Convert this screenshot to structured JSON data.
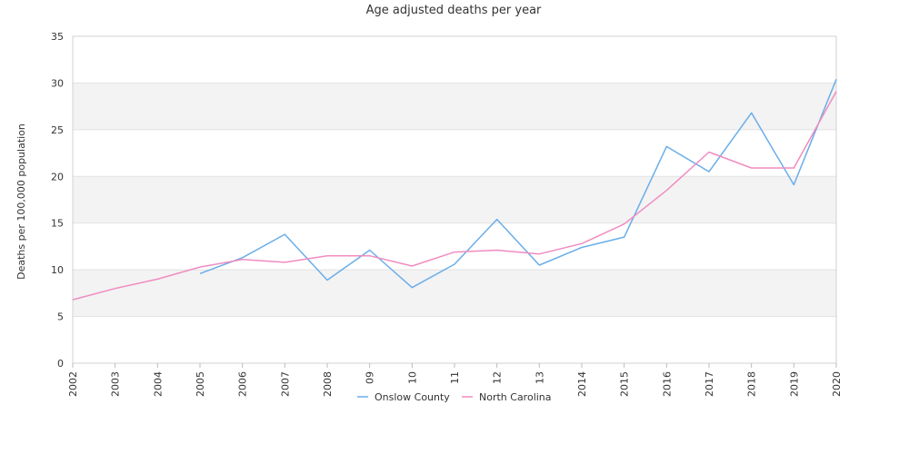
{
  "chart_data": {
    "type": "line",
    "title": "Age adjusted deaths per year",
    "ylabel": "Deaths per 100,000 population",
    "xlabel": "",
    "ylim": [
      0,
      35
    ],
    "yticks": [
      0,
      5,
      10,
      15,
      20,
      25,
      30,
      35
    ],
    "grid": "alternating horizontal bands",
    "legend_position": "bottom",
    "categories": [
      "2002",
      "2003",
      "2004",
      "2005",
      "2006",
      "2007",
      "2008",
      "09",
      "10",
      "11",
      "12",
      "13",
      "2014",
      "2015",
      "2016",
      "2017",
      "2018",
      "2019",
      "2020"
    ],
    "series": [
      {
        "name": "Onslow County",
        "color": "#6aaee8",
        "values": [
          null,
          null,
          null,
          9.6,
          11.3,
          13.8,
          8.9,
          12.1,
          8.1,
          10.6,
          15.4,
          10.5,
          12.4,
          13.5,
          23.2,
          20.5,
          26.8,
          19.1,
          30.4
        ]
      },
      {
        "name": "North Carolina",
        "color": "#f08cc0",
        "values": [
          6.8,
          8.0,
          9.0,
          10.3,
          11.1,
          10.8,
          11.5,
          11.5,
          10.4,
          11.9,
          12.1,
          11.7,
          12.8,
          14.9,
          18.5,
          22.6,
          20.9,
          20.9,
          29.1
        ]
      }
    ]
  }
}
